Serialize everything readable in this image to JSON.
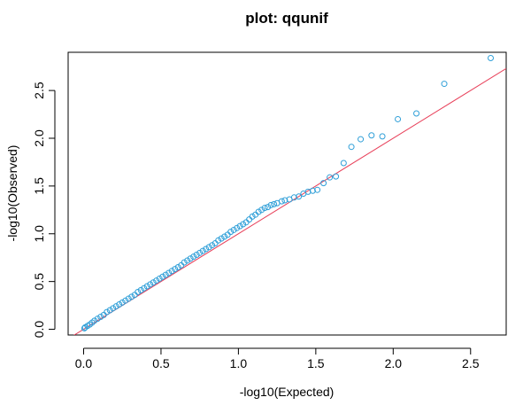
{
  "chart_data": {
    "type": "scatter",
    "title": "plot: qqunif",
    "xlabel": "-log10(Expected)",
    "ylabel": "-log10(Observed)",
    "xlim": [
      -0.1,
      2.73
    ],
    "ylim": [
      -0.06,
      2.9
    ],
    "x_ticks": [
      "0.0",
      "0.5",
      "1.0",
      "1.5",
      "2.0",
      "2.5"
    ],
    "x_tick_values": [
      0,
      0.5,
      1.0,
      1.5,
      2.0,
      2.5
    ],
    "y_ticks": [
      "0.0",
      "0.5",
      "1.0",
      "1.5",
      "2.0",
      "2.5"
    ],
    "y_tick_values": [
      0,
      0.5,
      1.0,
      1.5,
      2.0,
      2.5
    ],
    "reference_line": {
      "slope": 1,
      "intercept": 0,
      "color": "#e8405a"
    },
    "point_color": "#2f9fd8",
    "points": [
      [
        2.63,
        2.84
      ],
      [
        2.33,
        2.57
      ],
      [
        2.15,
        2.26
      ],
      [
        2.03,
        2.2
      ],
      [
        1.93,
        2.02
      ],
      [
        1.86,
        2.03
      ],
      [
        1.79,
        1.99
      ],
      [
        1.73,
        1.91
      ],
      [
        1.68,
        1.74
      ],
      [
        1.63,
        1.6
      ],
      [
        1.59,
        1.59
      ],
      [
        1.55,
        1.53
      ],
      [
        1.51,
        1.46
      ],
      [
        1.48,
        1.45
      ],
      [
        1.45,
        1.44
      ],
      [
        1.42,
        1.42
      ],
      [
        1.39,
        1.39
      ],
      [
        1.36,
        1.38
      ],
      [
        1.33,
        1.36
      ],
      [
        1.3,
        1.35
      ],
      [
        1.28,
        1.34
      ],
      [
        1.25,
        1.32
      ],
      [
        1.23,
        1.31
      ],
      [
        1.21,
        1.3
      ],
      [
        1.19,
        1.28
      ],
      [
        1.17,
        1.27
      ],
      [
        1.15,
        1.25
      ],
      [
        1.13,
        1.23
      ],
      [
        1.11,
        1.2
      ],
      [
        1.09,
        1.18
      ],
      [
        1.07,
        1.15
      ],
      [
        1.05,
        1.12
      ],
      [
        1.03,
        1.1
      ],
      [
        1.01,
        1.08
      ],
      [
        0.99,
        1.06
      ],
      [
        0.97,
        1.04
      ],
      [
        0.95,
        1.02
      ],
      [
        0.93,
        0.99
      ],
      [
        0.91,
        0.97
      ],
      [
        0.89,
        0.95
      ],
      [
        0.87,
        0.93
      ],
      [
        0.85,
        0.9
      ],
      [
        0.83,
        0.88
      ],
      [
        0.81,
        0.86
      ],
      [
        0.79,
        0.84
      ],
      [
        0.77,
        0.82
      ],
      [
        0.75,
        0.8
      ],
      [
        0.73,
        0.78
      ],
      [
        0.71,
        0.76
      ],
      [
        0.69,
        0.74
      ],
      [
        0.67,
        0.72
      ],
      [
        0.65,
        0.7
      ],
      [
        0.63,
        0.67
      ],
      [
        0.61,
        0.65
      ],
      [
        0.59,
        0.63
      ],
      [
        0.57,
        0.61
      ],
      [
        0.55,
        0.59
      ],
      [
        0.53,
        0.57
      ],
      [
        0.51,
        0.55
      ],
      [
        0.49,
        0.53
      ],
      [
        0.47,
        0.51
      ],
      [
        0.45,
        0.49
      ],
      [
        0.43,
        0.47
      ],
      [
        0.41,
        0.45
      ],
      [
        0.39,
        0.43
      ],
      [
        0.37,
        0.41
      ],
      [
        0.35,
        0.39
      ],
      [
        0.33,
        0.36
      ],
      [
        0.31,
        0.34
      ],
      [
        0.29,
        0.32
      ],
      [
        0.27,
        0.3
      ],
      [
        0.25,
        0.28
      ],
      [
        0.23,
        0.26
      ],
      [
        0.21,
        0.24
      ],
      [
        0.19,
        0.22
      ],
      [
        0.17,
        0.2
      ],
      [
        0.15,
        0.18
      ],
      [
        0.13,
        0.15
      ],
      [
        0.11,
        0.13
      ],
      [
        0.09,
        0.11
      ],
      [
        0.07,
        0.09
      ],
      [
        0.055,
        0.07
      ],
      [
        0.04,
        0.05
      ],
      [
        0.025,
        0.035
      ],
      [
        0.01,
        0.02
      ],
      [
        0.005,
        0.01
      ]
    ]
  }
}
